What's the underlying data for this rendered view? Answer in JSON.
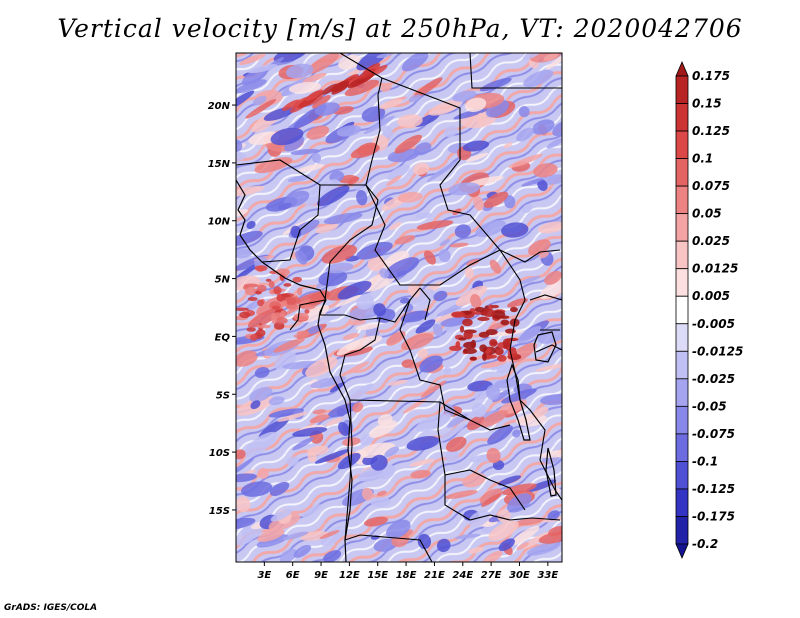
{
  "title": "Vertical velocity [m/s] at 250hPa, VT: 2020042706",
  "footer": "GrADS: IGES/COLA",
  "map": {
    "lat_labels": [
      "20N",
      "15N",
      "10N",
      "5N",
      "EQ",
      "5S",
      "10S",
      "15S"
    ],
    "lat_values": [
      20,
      15,
      10,
      5,
      0,
      -5,
      -10,
      -15
    ],
    "lon_labels": [
      "3E",
      "6E",
      "9E",
      "12E",
      "15E",
      "18E",
      "21E",
      "24E",
      "27E",
      "30E",
      "33E"
    ],
    "lon_values": [
      3,
      6,
      9,
      12,
      15,
      18,
      21,
      24,
      27,
      30,
      33
    ],
    "lat_range": [
      -19.5,
      24.5
    ],
    "lon_range": [
      0,
      34.5
    ]
  },
  "colorbar": {
    "labels": [
      "0.175",
      "0.15",
      "0.125",
      "0.1",
      "0.075",
      "0.05",
      "0.025",
      "0.0125",
      "0.005",
      "-0.005",
      "-0.0125",
      "-0.025",
      "-0.05",
      "-0.075",
      "-0.1",
      "-0.125",
      "-0.175",
      "-0.2"
    ],
    "colors": [
      "#a01818",
      "#b82424",
      "#cc3434",
      "#dc4848",
      "#e46464",
      "#ec8282",
      "#f4a4a4",
      "#f8c4c4",
      "#fce0e0",
      "#ffffff",
      "#dcdcf8",
      "#c0c0f4",
      "#a4a4f0",
      "#8888ea",
      "#6c6ce0",
      "#5050d4",
      "#3434c4",
      "#2222a8",
      "#141490"
    ]
  }
}
